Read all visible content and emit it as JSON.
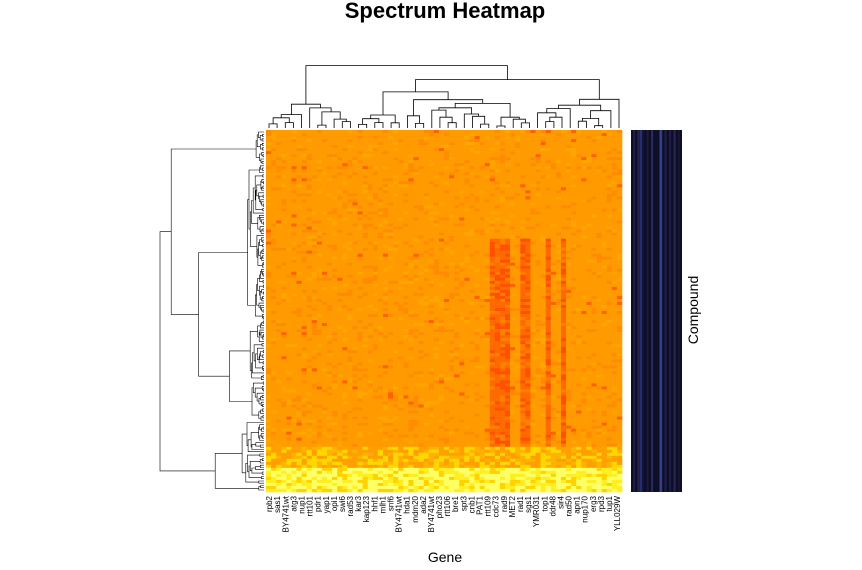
{
  "chart_data": {
    "type": "heatmap",
    "title": "Spectrum Heatmap",
    "xlabel": "Gene",
    "ylabel": "Compound",
    "x_tick_labels": [
      "rpb2",
      "sas1",
      "BY4741wt",
      "atg3",
      "nup1",
      "rtt101",
      "pdr1",
      "yap1",
      "opi1",
      "swi6",
      "rad53",
      "kar3",
      "kap123",
      "hhf1",
      "mlh1",
      "snf6",
      "BY4741wt",
      "hda1",
      "mdm20",
      "ada2",
      "BY4741wt",
      "pho23",
      "rtt106",
      "bre1",
      "spt3",
      "cnb1",
      "PAT1",
      "rtt109",
      "cdc73",
      "rad9",
      "MET2",
      "rad1",
      "sgs1",
      "YMR031",
      "top1",
      "ddr48",
      "sir4",
      "rad50",
      "apn1",
      "nup170",
      "erg3",
      "rpd3",
      "tup1",
      "YLL029W"
    ],
    "color_scale": [
      "#ff0000",
      "#ff8c00",
      "#ffa500",
      "#ffd700",
      "#ffff66"
    ],
    "side_colors": [
      "#222244",
      "#1a1a3a",
      "#0d0d26",
      "#000033",
      "#333366"
    ],
    "grid": false
  }
}
